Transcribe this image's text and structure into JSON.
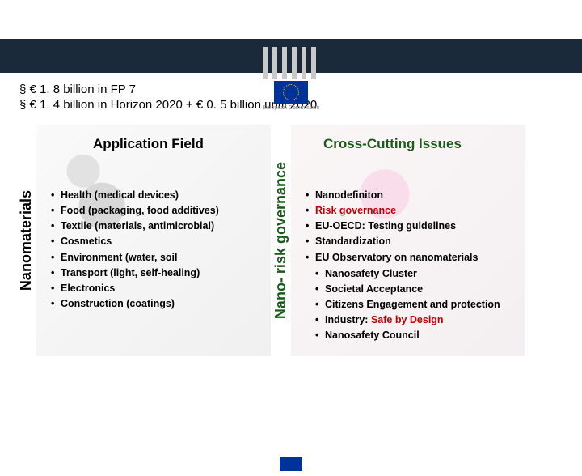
{
  "logo_label": "European\nCommission",
  "funding": [
    "§  € 1. 8 billion in FP 7",
    "§  € 1. 4 billion in Horizon 2020 + € 0. 5 billion until 2020"
  ],
  "vertical_left": "Nanomaterials",
  "vertical_right": "Nano- risk governance",
  "left": {
    "title": "Application Field",
    "items": [
      {
        "text": "Health (medical devices)"
      },
      {
        "text": "Food (packaging, food additives)"
      },
      {
        "text": "Textile (materials, antimicrobial)"
      },
      {
        "text": "Cosmetics"
      },
      {
        "text": "Environment (water, soil"
      },
      {
        "text": "Transport (light, self-healing)"
      },
      {
        "text": "Electronics"
      },
      {
        "text": "Construction (coatings)"
      }
    ]
  },
  "right": {
    "title": "Cross-Cutting Issues",
    "items": [
      {
        "text": "Nanodefiniton"
      },
      {
        "text": "Risk governance",
        "hl": true
      },
      {
        "text": "EU-OECD: Testing guidelines"
      },
      {
        "text": "Standardization"
      },
      {
        "text": "EU Observatory on nanomaterials",
        "sub": [
          {
            "text": "Nanosafety  Cluster"
          },
          {
            "text": "Societal Acceptance"
          },
          {
            "text": "Citizens Engagement and protection"
          },
          {
            "text_pre": "Industry: ",
            "text_hl": "Safe by Design"
          },
          {
            "text": "Nanosafety Council"
          }
        ]
      }
    ]
  },
  "colors": {
    "banner": "#1a2a3a",
    "flag_blue": "#003399",
    "flag_star": "#ffcc00",
    "red": "#c00000",
    "green": "#1a5a1a"
  }
}
